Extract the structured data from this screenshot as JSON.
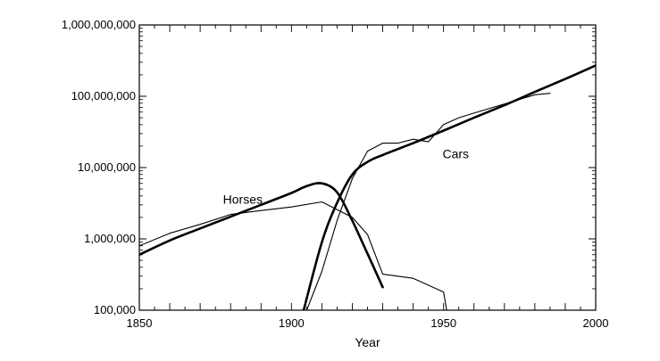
{
  "chart_data": {
    "type": "line",
    "title": "",
    "xlabel": "Year",
    "ylabel": "",
    "xlim": [
      1850,
      2000
    ],
    "ylim": [
      100000,
      1000000000
    ],
    "y_scale": "log",
    "grid": false,
    "legend": "none",
    "x_ticks": [
      1850,
      1900,
      1950,
      2000
    ],
    "x_tick_labels": [
      "1850",
      "1900",
      "1950",
      "2000"
    ],
    "y_ticks": [
      100000,
      1000000,
      10000000,
      100000000,
      1000000000
    ],
    "y_tick_labels": [
      "100,000",
      "1,000,000",
      "10,000,000",
      "100,000,000",
      "1,000,000,000"
    ],
    "annotations": [
      {
        "text": "Horses",
        "x": 1884,
        "y": 3100000
      },
      {
        "text": "Cars",
        "x": 1954,
        "y": 13500000
      }
    ],
    "series": [
      {
        "name": "Horses",
        "kind": "data",
        "x": [
          1850,
          1860,
          1870,
          1880,
          1890,
          1900,
          1910,
          1920,
          1925,
          1930,
          1940,
          1950,
          1951
        ],
        "y": [
          800000,
          1200000,
          1600000,
          2200000,
          2500000,
          2800000,
          3300000,
          2000000,
          1150000,
          320000,
          280000,
          180000,
          100000
        ]
      },
      {
        "name": "Horses",
        "kind": "logistic fit",
        "x": [
          1850,
          1860,
          1870,
          1880,
          1890,
          1900,
          1905,
          1910,
          1915,
          1920,
          1925,
          1930
        ],
        "y": [
          600000,
          950000,
          1400000,
          2050000,
          3000000,
          4400000,
          5500000,
          6000000,
          4500000,
          1800000,
          620000,
          210000
        ]
      },
      {
        "name": "Cars",
        "kind": "data",
        "x": [
          1905,
          1910,
          1915,
          1920,
          1925,
          1930,
          1935,
          1940,
          1945,
          1950,
          1955,
          1960,
          1970,
          1980,
          1985
        ],
        "y": [
          100000,
          350000,
          1800000,
          7000000,
          17000000,
          22000000,
          22000000,
          25000000,
          23000000,
          40000000,
          50000000,
          58000000,
          78000000,
          105000000,
          110000000
        ]
      },
      {
        "name": "Cars",
        "kind": "logistic fit",
        "x": [
          1904,
          1910,
          1915,
          1920,
          1925,
          1930,
          1940,
          1950,
          1960,
          1970,
          1980,
          1990,
          2000
        ],
        "y": [
          100000,
          900000,
          3200000,
          8000000,
          12000000,
          15000000,
          22000000,
          33000000,
          50000000,
          75000000,
          115000000,
          175000000,
          270000000
        ]
      }
    ]
  }
}
